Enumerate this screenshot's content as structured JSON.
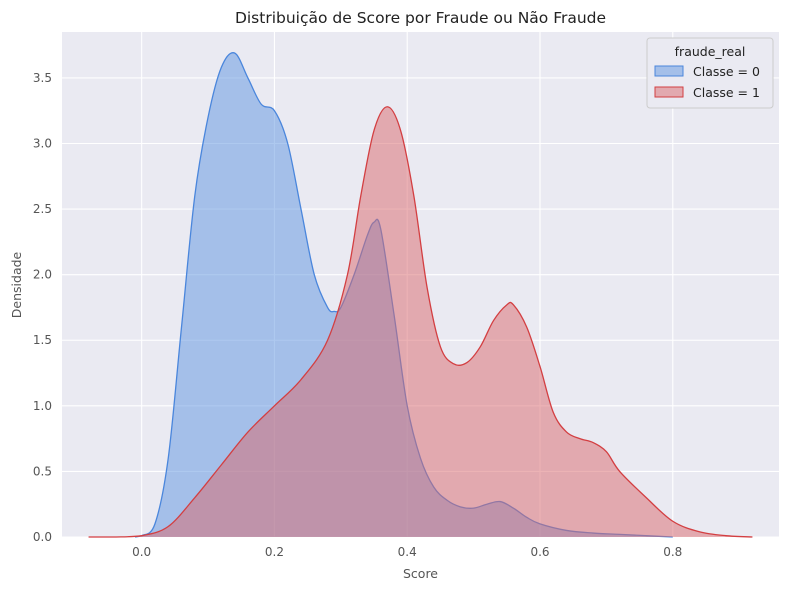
{
  "chart_data": {
    "type": "area",
    "title": "Distribuição de Score por Fraude ou Não Fraude",
    "xlabel": "Score",
    "ylabel": "Densidade",
    "xlim": [
      -0.12,
      0.96
    ],
    "ylim": [
      0,
      3.85
    ],
    "xticks": [
      0.0,
      0.2,
      0.4,
      0.6,
      0.8
    ],
    "xtick_labels": [
      "0.0",
      "0.2",
      "0.4",
      "0.6",
      "0.8"
    ],
    "yticks": [
      0.0,
      0.5,
      1.0,
      1.5,
      2.0,
      2.5,
      3.0,
      3.5
    ],
    "ytick_labels": [
      "0.0",
      "0.5",
      "1.0",
      "1.5",
      "2.0",
      "2.5",
      "3.0",
      "3.5"
    ],
    "grid": true,
    "background": "#eaeaf2",
    "legend": {
      "title": "fraude_real",
      "position": "top-right"
    },
    "series": [
      {
        "name": "Classe = 0",
        "fill": "#5d93df",
        "stroke": "#4a86dc",
        "fill_opacity": 0.5,
        "x": [
          -0.01,
          0.0,
          0.02,
          0.04,
          0.06,
          0.08,
          0.1,
          0.12,
          0.14,
          0.16,
          0.18,
          0.2,
          0.22,
          0.24,
          0.26,
          0.28,
          0.29,
          0.3,
          0.32,
          0.34,
          0.35,
          0.36,
          0.38,
          0.4,
          0.42,
          0.44,
          0.46,
          0.48,
          0.5,
          0.52,
          0.54,
          0.56,
          0.58,
          0.6,
          0.64,
          0.68,
          0.72,
          0.76,
          0.8
        ],
        "y": [
          0.0,
          0.01,
          0.1,
          0.6,
          1.6,
          2.6,
          3.2,
          3.58,
          3.69,
          3.5,
          3.3,
          3.25,
          3.0,
          2.5,
          2.0,
          1.75,
          1.72,
          1.75,
          2.0,
          2.3,
          2.4,
          2.35,
          1.7,
          1.0,
          0.6,
          0.38,
          0.28,
          0.23,
          0.22,
          0.25,
          0.27,
          0.22,
          0.15,
          0.1,
          0.05,
          0.03,
          0.02,
          0.01,
          0.0
        ]
      },
      {
        "name": "Classe = 1",
        "fill": "#d9686b",
        "stroke": "#d33f42",
        "fill_opacity": 0.5,
        "x": [
          -0.08,
          -0.04,
          0.0,
          0.04,
          0.08,
          0.12,
          0.16,
          0.2,
          0.24,
          0.28,
          0.31,
          0.33,
          0.35,
          0.37,
          0.39,
          0.41,
          0.43,
          0.45,
          0.47,
          0.49,
          0.51,
          0.53,
          0.55,
          0.56,
          0.58,
          0.6,
          0.62,
          0.64,
          0.66,
          0.68,
          0.7,
          0.72,
          0.76,
          0.8,
          0.84,
          0.88,
          0.92
        ],
        "y": [
          0.0,
          0.0,
          0.01,
          0.08,
          0.3,
          0.55,
          0.8,
          1.0,
          1.2,
          1.5,
          2.0,
          2.6,
          3.1,
          3.28,
          3.1,
          2.6,
          1.9,
          1.45,
          1.32,
          1.33,
          1.45,
          1.65,
          1.77,
          1.77,
          1.6,
          1.3,
          0.95,
          0.8,
          0.75,
          0.72,
          0.65,
          0.5,
          0.3,
          0.12,
          0.04,
          0.01,
          0.0
        ]
      }
    ]
  }
}
